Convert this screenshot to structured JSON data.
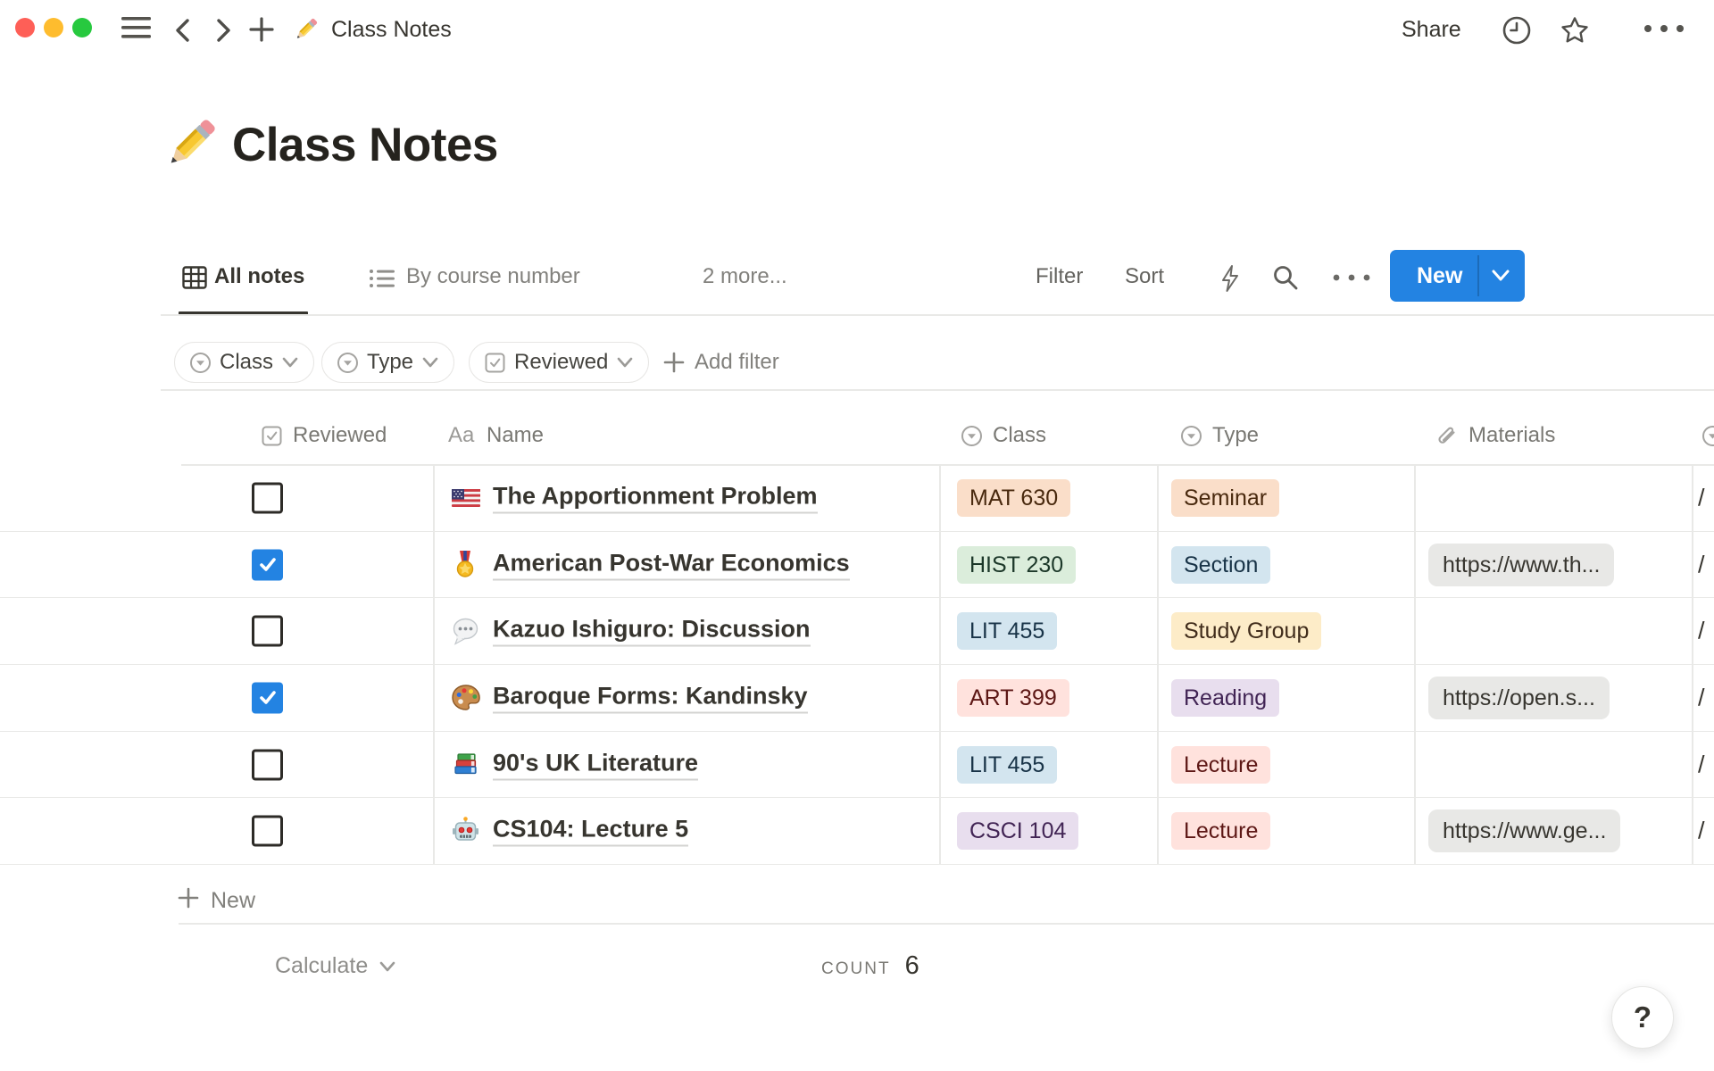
{
  "window": {
    "traffic_lights": [
      "close",
      "minimize",
      "zoom"
    ],
    "nav_icons": [
      "hamburger-icon",
      "chevron-left-icon",
      "chevron-right-icon",
      "plus-icon"
    ],
    "doc_icon": "pencil-icon",
    "doc_title": "Class Notes",
    "share_label": "Share",
    "action_icons": [
      "clock-icon",
      "star-icon",
      "ellipsis-icon"
    ]
  },
  "page": {
    "title_icon": "pencil-icon",
    "title": "Class Notes"
  },
  "toolbar": {
    "tabs": [
      {
        "icon": "table-view-icon",
        "label": "All notes",
        "active": true
      },
      {
        "icon": "list-view-icon",
        "label": "By course number",
        "active": false
      }
    ],
    "more_tabs_label": "2 more...",
    "filter_label": "Filter",
    "sort_label": "Sort",
    "quick_action_icons": [
      "lightning-icon",
      "search-icon",
      "ellipsis-icon"
    ],
    "new_button_label": "New",
    "new_button_color": "#2383e2"
  },
  "filter_bar": {
    "chips": [
      {
        "icon": "select-icon",
        "label": "Class"
      },
      {
        "icon": "select-icon",
        "label": "Type"
      },
      {
        "icon": "checkbox-icon",
        "label": "Reviewed"
      }
    ],
    "add_filter_label": "Add filter"
  },
  "table": {
    "columns": [
      {
        "icon": "checkbox-icon",
        "label": "Reviewed"
      },
      {
        "icon_glyph": "Aa",
        "label": "Name"
      },
      {
        "icon": "select-icon",
        "label": "Class"
      },
      {
        "icon": "select-icon",
        "label": "Type"
      },
      {
        "icon": "paperclip-icon",
        "label": "Materials"
      }
    ],
    "overflow_column": {
      "icon": "select-icon",
      "cell_text": "/"
    },
    "rows": [
      {
        "checked": false,
        "icon": "us-flag-icon",
        "name": "The Apportionment Problem",
        "class": {
          "label": "MAT 630",
          "color": "orange"
        },
        "type": {
          "label": "Seminar",
          "color": "orange"
        },
        "material": ""
      },
      {
        "checked": true,
        "icon": "medal-icon",
        "name": "American Post-War Economics",
        "class": {
          "label": "HIST 230",
          "color": "green"
        },
        "type": {
          "label": "Section",
          "color": "blue"
        },
        "material": "https://www.th..."
      },
      {
        "checked": false,
        "icon": "speech-balloon-icon",
        "name": "Kazuo Ishiguro: Discussion",
        "class": {
          "label": "LIT 455",
          "color": "blue"
        },
        "type": {
          "label": "Study Group",
          "color": "yellow"
        },
        "material": ""
      },
      {
        "checked": true,
        "icon": "palette-icon",
        "name": "Baroque Forms: Kandinsky",
        "class": {
          "label": "ART 399",
          "color": "red"
        },
        "type": {
          "label": "Reading",
          "color": "purple"
        },
        "material": "https://open.s..."
      },
      {
        "checked": false,
        "icon": "books-icon",
        "name": "90's UK Literature",
        "class": {
          "label": "LIT 455",
          "color": "blue"
        },
        "type": {
          "label": "Lecture",
          "color": "red"
        },
        "material": ""
      },
      {
        "checked": false,
        "icon": "robot-icon",
        "name": "CS104: Lecture 5",
        "class": {
          "label": "CSCI 104",
          "color": "purple"
        },
        "type": {
          "label": "Lecture",
          "color": "red"
        },
        "material": "https://www.ge..."
      }
    ],
    "new_row_label": "New",
    "footer": {
      "calculate_label": "Calculate",
      "count_label": "COUNT",
      "count_value": "6"
    }
  },
  "help_button_label": "?",
  "colors": {
    "accent_blue": "#2383e2",
    "checkbox_checked": "#2383e2",
    "divider": "#e9e9e7",
    "text_primary": "#37352f",
    "text_secondary": "#7a7974",
    "tag_palette": {
      "orange": {
        "bg": "#fadec9",
        "fg": "#49290e"
      },
      "green": {
        "bg": "#dbeddb",
        "fg": "#1c3829"
      },
      "blue": {
        "bg": "#d3e5ef",
        "fg": "#183347"
      },
      "yellow": {
        "bg": "#fdecc8",
        "fg": "#402c1b"
      },
      "red": {
        "bg": "#ffe2dd",
        "fg": "#5d1715"
      },
      "purple": {
        "bg": "#e8deee",
        "fg": "#412454"
      }
    },
    "traffic": [
      "#fe5f57",
      "#febc2e",
      "#27c93f"
    ]
  }
}
